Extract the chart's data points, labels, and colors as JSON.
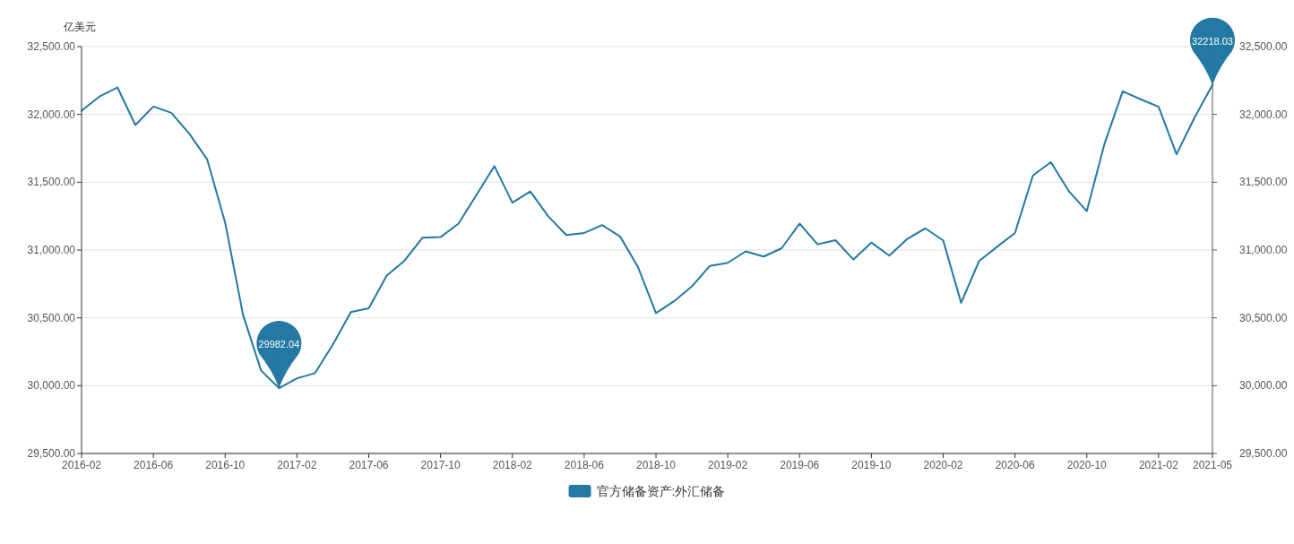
{
  "chart_data": {
    "type": "line",
    "ylabel": "亿美元",
    "x": [
      "2016-02",
      "2016-03",
      "2016-04",
      "2016-05",
      "2016-06",
      "2016-07",
      "2016-08",
      "2016-09",
      "2016-10",
      "2016-11",
      "2016-12",
      "2017-01",
      "2017-02",
      "2017-03",
      "2017-04",
      "2017-05",
      "2017-06",
      "2017-07",
      "2017-08",
      "2017-09",
      "2017-10",
      "2017-11",
      "2017-12",
      "2018-01",
      "2018-02",
      "2018-03",
      "2018-04",
      "2018-05",
      "2018-06",
      "2018-07",
      "2018-08",
      "2018-09",
      "2018-10",
      "2018-11",
      "2018-12",
      "2019-01",
      "2019-02",
      "2019-03",
      "2019-04",
      "2019-05",
      "2019-06",
      "2019-07",
      "2019-08",
      "2019-09",
      "2019-10",
      "2019-11",
      "2019-12",
      "2020-01",
      "2020-02",
      "2020-03",
      "2020-04",
      "2020-05",
      "2020-06",
      "2020-07",
      "2020-08",
      "2020-09",
      "2020-10",
      "2020-11",
      "2020-12",
      "2021-01",
      "2021-02",
      "2021-03",
      "2021-04",
      "2021-05"
    ],
    "series": [
      {
        "name": "官方储备资产:外汇储备",
        "color": "#2378a4",
        "values": [
          32027,
          32132,
          32199,
          31922,
          32058,
          32012,
          31858,
          31668,
          31202,
          30520,
          30112,
          29982.04,
          30054,
          30092,
          30303,
          30542,
          30571,
          30812,
          30923,
          31091,
          31095,
          31195,
          31407,
          31619,
          31349,
          31432,
          31249,
          31111,
          31126,
          31184,
          31100,
          30874,
          30535,
          30622,
          30732,
          30883,
          30906,
          30990,
          30952,
          31013,
          31195,
          31042,
          31073,
          30930,
          31055,
          30959,
          31082,
          31160,
          31071,
          30611,
          30919,
          31024,
          31126,
          31550,
          31648,
          31434,
          31287,
          31789,
          32170,
          32112,
          32056,
          31706,
          31976,
          32218.03
        ]
      }
    ],
    "xlim": [
      "2016-02",
      "2021-05"
    ],
    "xticks": [
      "2016-02",
      "2016-06",
      "2016-10",
      "2017-02",
      "2017-06",
      "2017-10",
      "2018-02",
      "2018-06",
      "2018-10",
      "2019-02",
      "2019-06",
      "2019-10",
      "2020-02",
      "2020-06",
      "2020-10",
      "2021-02",
      "2021-05"
    ],
    "ylim": [
      29500,
      32500
    ],
    "yticks": [
      {
        "value": 29500,
        "label": "29,500.00"
      },
      {
        "value": 30000,
        "label": "30,000.00"
      },
      {
        "value": 30500,
        "label": "30,500.00"
      },
      {
        "value": 31000,
        "label": "31,000.00"
      },
      {
        "value": 31500,
        "label": "31,500.00"
      },
      {
        "value": 32000,
        "label": "32,000.00"
      },
      {
        "value": 32500,
        "label": "32,500.00"
      }
    ],
    "y2lim": [
      29500,
      32500
    ],
    "y2ticks": [
      {
        "value": 29500,
        "label": "29,500.00"
      },
      {
        "value": 30000,
        "label": "30,000.00"
      },
      {
        "value": 30500,
        "label": "30,500.00"
      },
      {
        "value": 31000,
        "label": "31,000.00"
      },
      {
        "value": 31500,
        "label": "31,500.00"
      },
      {
        "value": 32000,
        "label": "32,000.00"
      },
      {
        "value": 32500,
        "label": "32,500.00"
      }
    ],
    "grid": "y",
    "legend": "bottom",
    "annotations": [
      {
        "text": "29982.04",
        "x": "2017-01",
        "y": 29982.04
      },
      {
        "text": "32218.03",
        "x": "2021-05",
        "y": 32218.03
      }
    ]
  }
}
